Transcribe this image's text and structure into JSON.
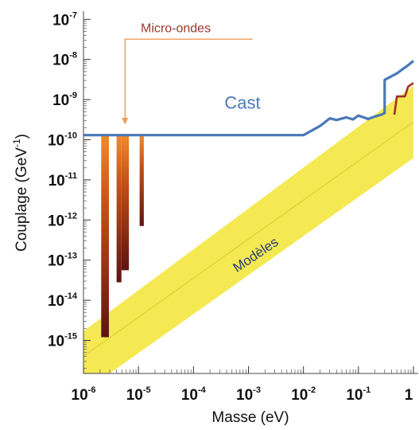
{
  "chart_data": {
    "type": "line",
    "xlabel": "Masse (eV)",
    "ylabel_main": "Couplage (GeV",
    "ylabel_exp": "-1",
    "ylabel_end": ")",
    "x_scale": "log",
    "y_scale": "log",
    "xlim": [
      1e-06,
      1
    ],
    "ylim": [
      1.5e-16,
      1.6e-07
    ],
    "x_ticks": [
      {
        "base": "10",
        "exp": "-6",
        "value": 1e-06
      },
      {
        "base": "10",
        "exp": "-5",
        "value": 1e-05
      },
      {
        "base": "10",
        "exp": "-4",
        "value": 0.0001
      },
      {
        "base": "10",
        "exp": "-3",
        "value": 0.001
      },
      {
        "base": "10",
        "exp": "-2",
        "value": 0.01
      },
      {
        "base": "10",
        "exp": "-1",
        "value": 0.1
      },
      {
        "base": "1",
        "exp": "",
        "value": 1
      }
    ],
    "y_ticks": [
      {
        "base": "10",
        "exp": "-7",
        "value": 1e-07
      },
      {
        "base": "10",
        "exp": "-8",
        "value": 1e-08
      },
      {
        "base": "10",
        "exp": "-9",
        "value": 1e-09
      },
      {
        "base": "10",
        "exp": "-10",
        "value": 1e-10
      },
      {
        "base": "10",
        "exp": "-11",
        "value": 1e-11
      },
      {
        "base": "10",
        "exp": "-12",
        "value": 1e-12
      },
      {
        "base": "10",
        "exp": "-13",
        "value": 1e-13
      },
      {
        "base": "10",
        "exp": "-14",
        "value": 1e-14
      },
      {
        "base": "10",
        "exp": "-15",
        "value": 1e-15
      }
    ],
    "series": [
      {
        "name": "Cast",
        "color": "#4a78b8",
        "points": [
          [
            1e-06,
            1.3e-10
          ],
          [
            0.01,
            1.3e-10
          ],
          [
            0.02,
            2.2e-10
          ],
          [
            0.03,
            3.4e-10
          ],
          [
            0.04,
            3.1e-10
          ],
          [
            0.06,
            3.6e-10
          ],
          [
            0.08,
            3.2e-10
          ],
          [
            0.1,
            4e-10
          ],
          [
            0.15,
            3.3e-10
          ],
          [
            0.2,
            3.8e-10
          ],
          [
            0.27,
            4.3e-10
          ],
          [
            0.3,
            4.6e-10
          ],
          [
            0.3,
            3.1e-09
          ],
          [
            0.5,
            4.5e-09
          ],
          [
            0.8,
            7.2e-09
          ],
          [
            1.0,
            9.2e-09
          ]
        ]
      },
      {
        "name": "",
        "color": "#a03028",
        "points": [
          [
            0.45,
            4.2e-10
          ],
          [
            0.5,
            1.2e-09
          ],
          [
            0.7,
            1.2e-09
          ],
          [
            0.8,
            2.1e-09
          ],
          [
            1.0,
            2.6e-09
          ]
        ]
      }
    ],
    "band": {
      "label": "Modèles",
      "color": "#f3e63a",
      "upper": [
        [
          1e-06,
          1.7e-15
        ],
        [
          1,
          2.2e-09
        ]
      ],
      "lower": [
        [
          3e-06,
          1.5e-16
        ],
        [
          1,
          3.5e-11
        ]
      ]
    },
    "exclusion_bars": [
      {
        "x_start": 2.1e-06,
        "x_end": 2.9e-06,
        "y_bottom": 1.2e-15,
        "y_top": 1.3e-10
      },
      {
        "x_start": 4e-06,
        "x_end": 4.9e-06,
        "y_bottom": 2.8e-14,
        "y_top": 1.3e-10
      },
      {
        "x_start": 4.9e-06,
        "x_end": 6.7e-06,
        "y_bottom": 5.6e-14,
        "y_top": 1.3e-10
      },
      {
        "x_start": 1.05e-05,
        "x_end": 1.25e-05,
        "y_bottom": 7.1e-13,
        "y_top": 1.3e-10
      }
    ],
    "annotations": [
      {
        "text": "Micro-ondes",
        "color": "#a0362c",
        "arrow_color": "#f29b55"
      },
      {
        "text": "Cast",
        "color": "#4a78b8"
      },
      {
        "text": "Modèles",
        "color": "#2a3d7a"
      }
    ]
  }
}
